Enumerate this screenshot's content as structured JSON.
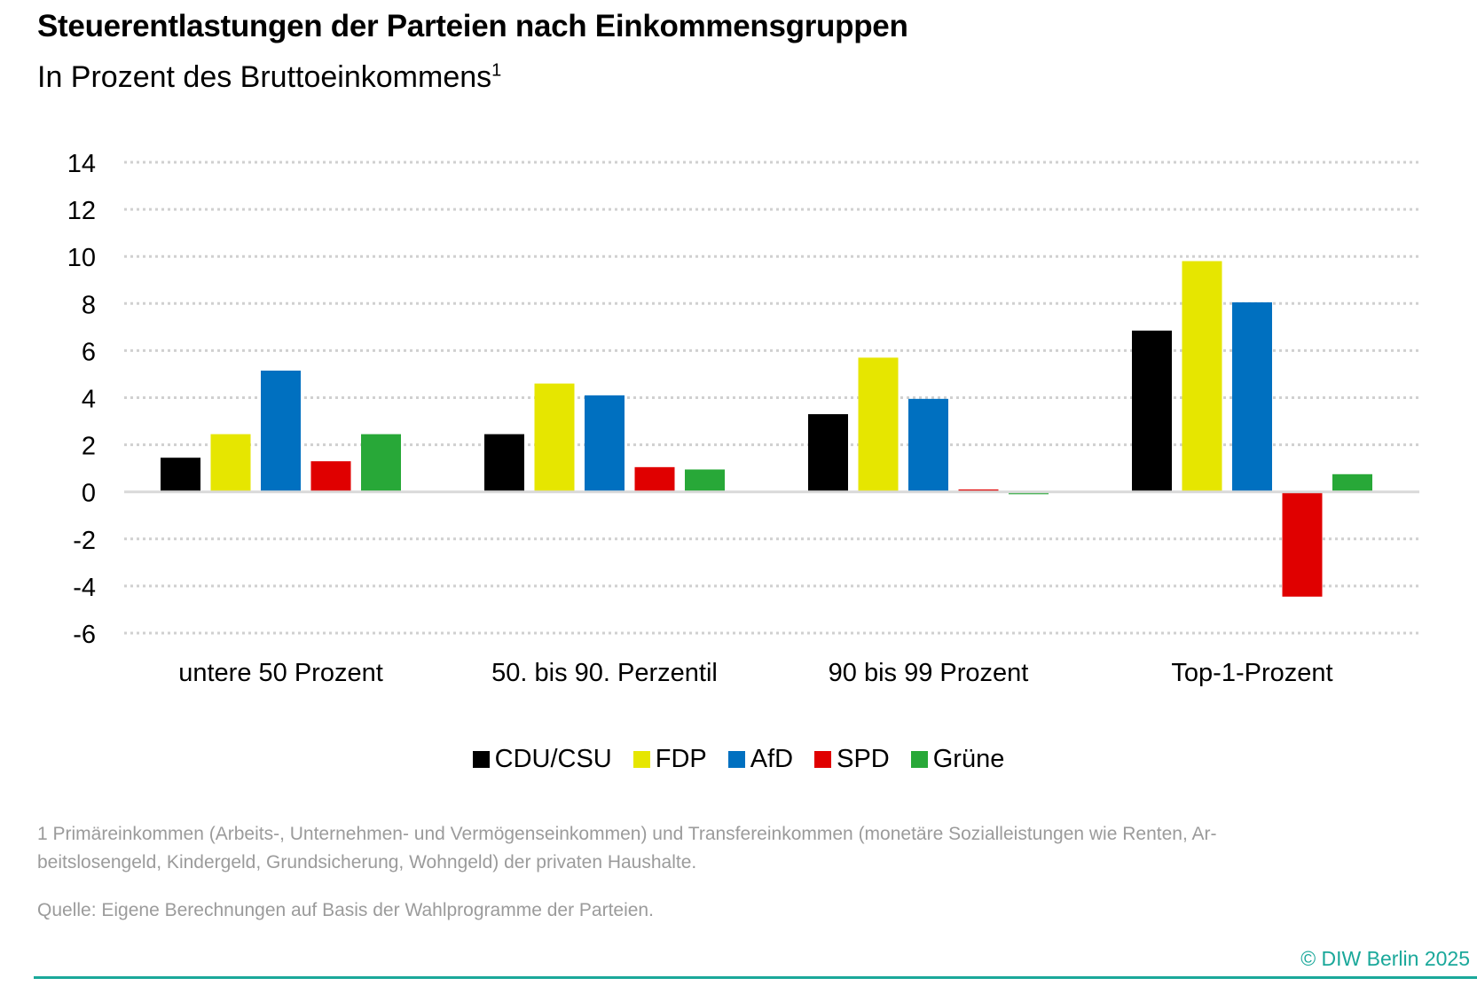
{
  "chart_data": {
    "type": "bar",
    "title": "Steuerentlastungen der Parteien nach Einkommensgruppen",
    "subtitle": "In Prozent des Bruttoeinkommens",
    "subtitle_footnote_marker": "1",
    "xlabel": "",
    "ylabel": "",
    "ylim": [
      -6,
      14
    ],
    "yticks": [
      14,
      12,
      10,
      8,
      6,
      4,
      2,
      0,
      -2,
      -4,
      -6
    ],
    "grid": true,
    "legend_position": "bottom",
    "categories": [
      "untere 50 Prozent",
      "50. bis 90. Perzentil",
      "90 bis 99 Prozent",
      "Top-1-Prozent"
    ],
    "series": [
      {
        "name": "CDU/CSU",
        "color": "#000000",
        "values": [
          1.45,
          2.45,
          3.3,
          6.85
        ]
      },
      {
        "name": "FDP",
        "color": "#e6e600",
        "values": [
          2.45,
          4.6,
          5.7,
          9.8
        ]
      },
      {
        "name": "AfD",
        "color": "#0070c0",
        "values": [
          5.15,
          4.1,
          3.95,
          8.05
        ]
      },
      {
        "name": "SPD",
        "color": "#e00000",
        "values": [
          1.3,
          1.05,
          0.1,
          -4.45
        ]
      },
      {
        "name": "Grüne",
        "color": "#28a838",
        "values": [
          2.45,
          0.95,
          -0.1,
          0.75
        ]
      }
    ]
  },
  "footnote": "1 Primäreinkommen (Arbeits-, Unternehmen- und Vermögenseinkommen) und Transfereinkommen (monetäre Sozialleistungen wie Renten, Ar-beitslosengeld, Kindergeld, Grundsicherung, Wohngeld) der privaten Haushalte.",
  "footnote_line1": "1 Primäreinkommen (Arbeits-, Unternehmen- und Vermögenseinkommen) und Transfereinkommen (monetäre Sozialleistungen wie Renten, Ar-",
  "footnote_line2": "beitslosengeld, Kindergeld, Grundsicherung, Wohngeld) der privaten Haushalte.",
  "source": "Quelle: Eigene Berechnungen auf Basis der Wahlprogramme der Parteien.",
  "copyright": "© DIW Berlin 2025"
}
